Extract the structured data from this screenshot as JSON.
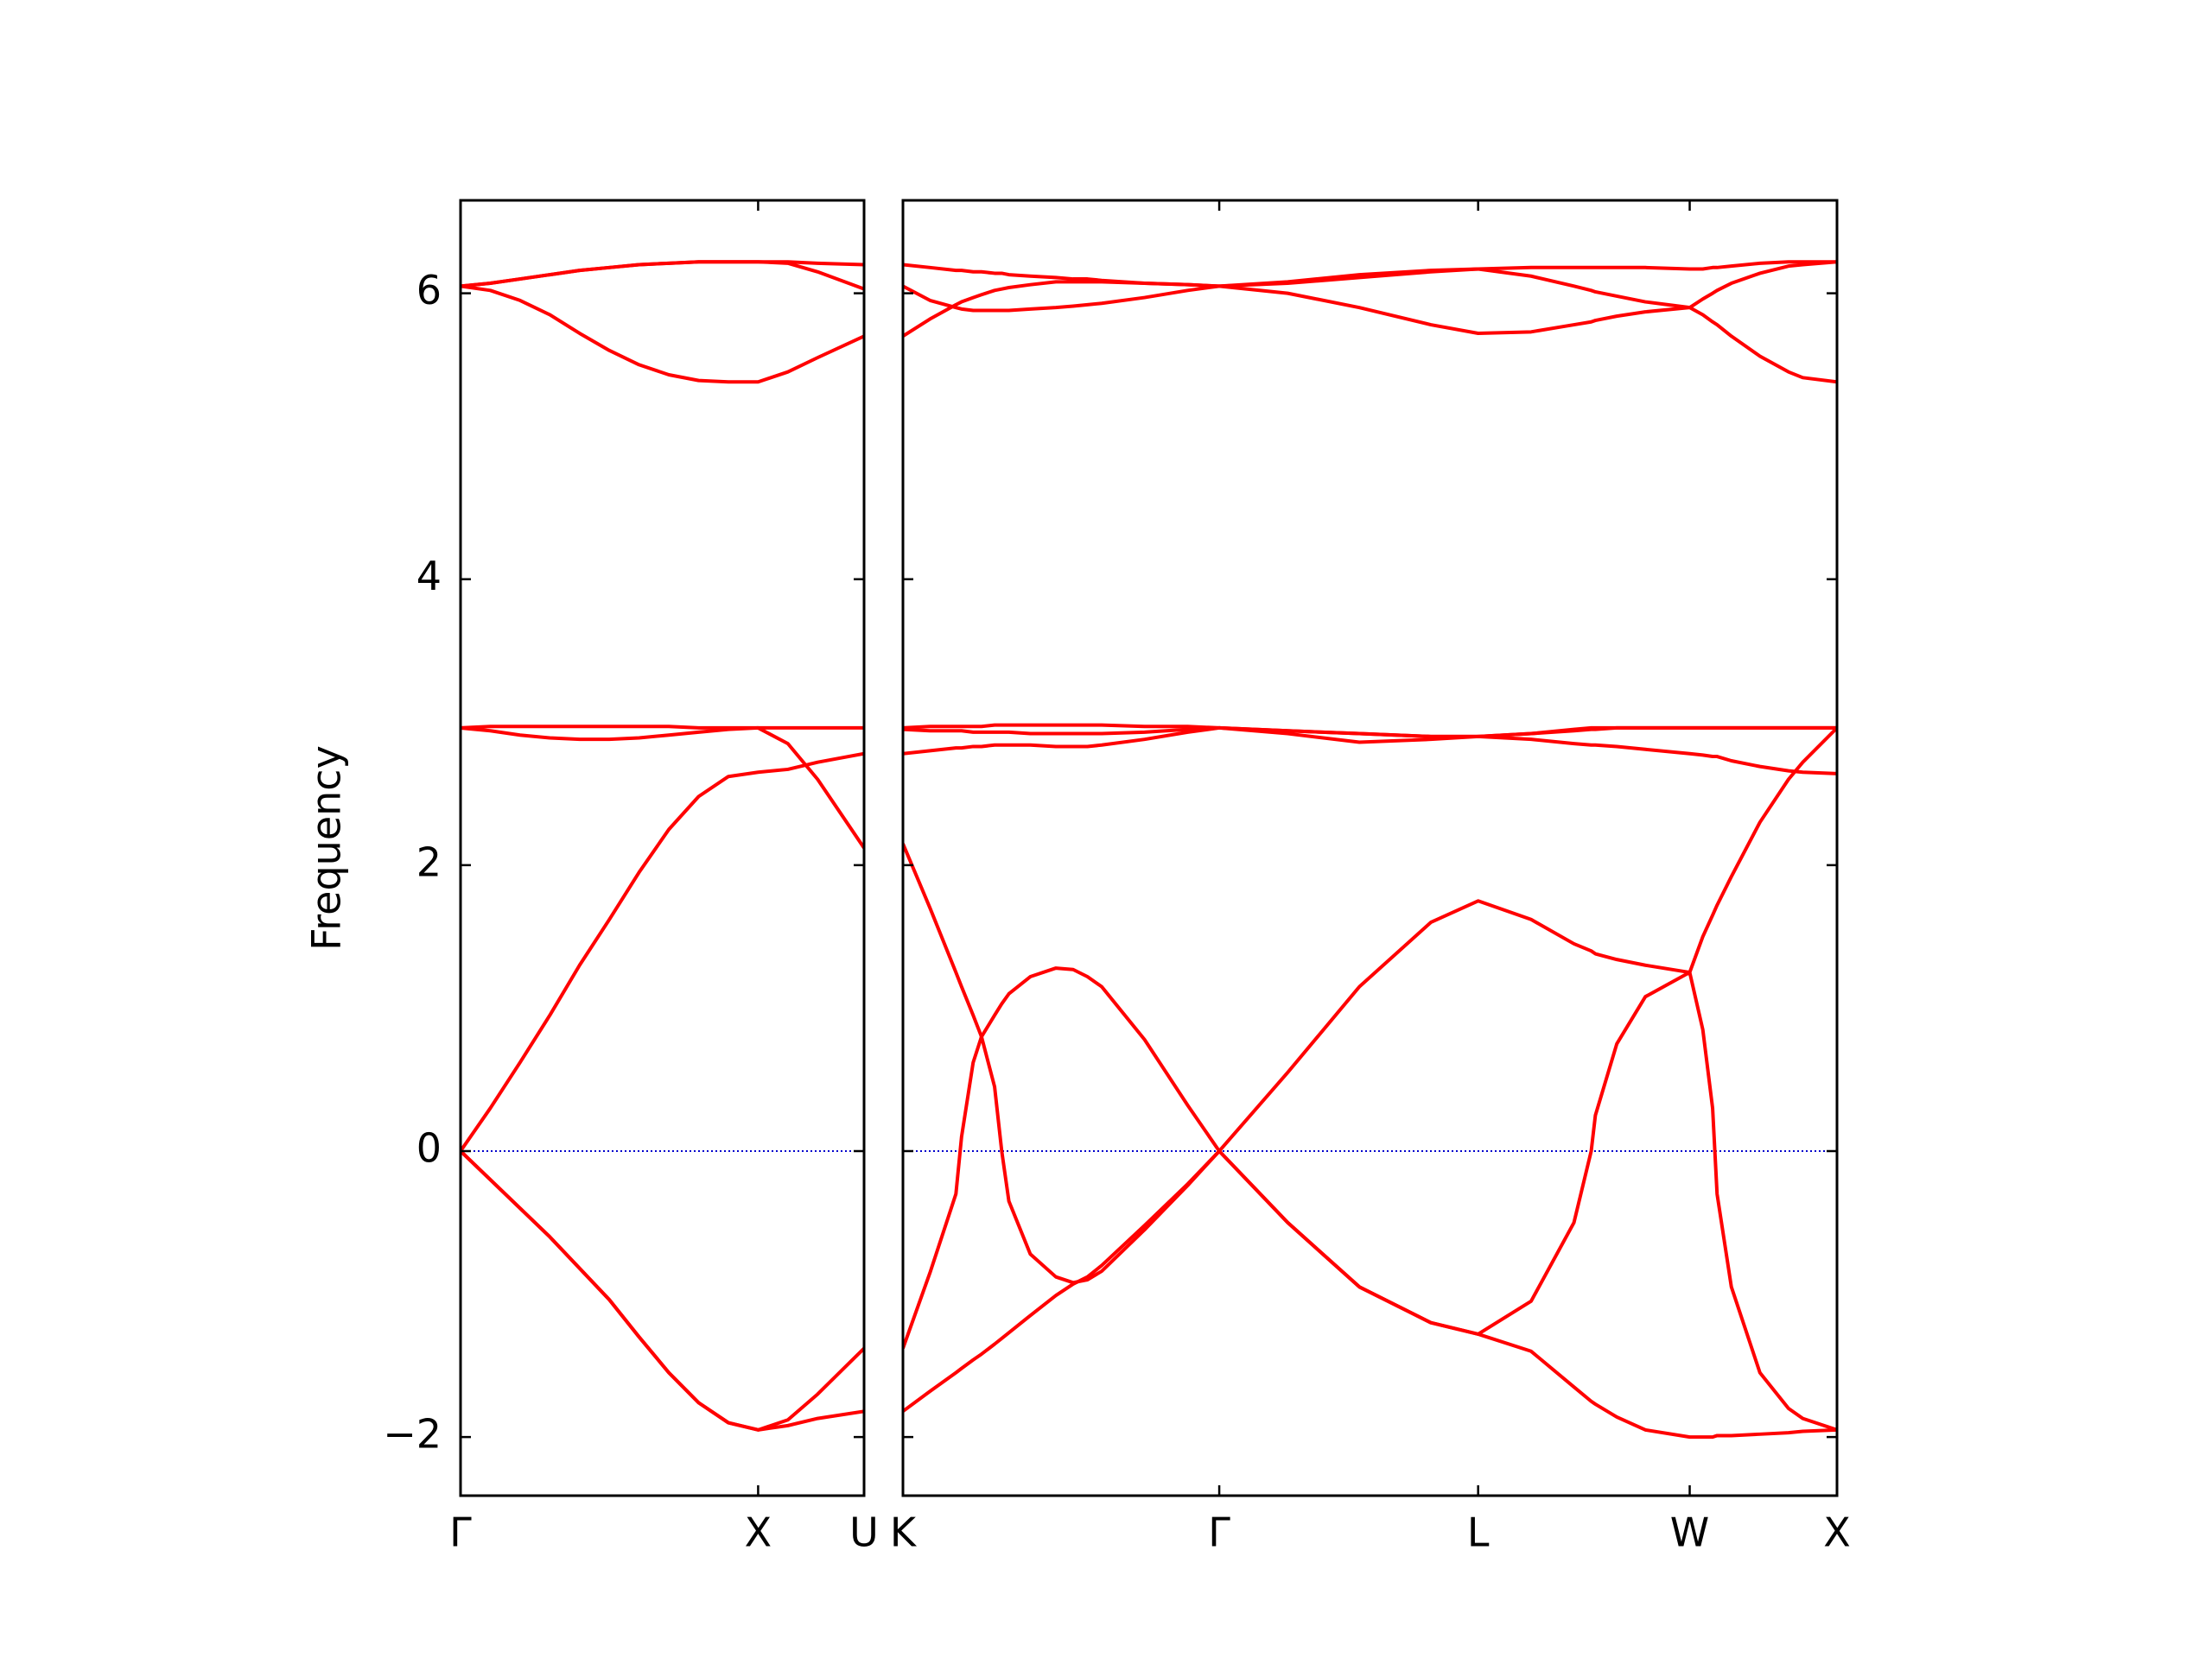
{
  "chart_data": [
    {
      "type": "line",
      "y_label": "Frequency",
      "color": "#ff0000",
      "hline": 0,
      "hline_color": "#0000cc",
      "ytick_labels": true,
      "xlim": [
        0,
        1.356
      ],
      "xticks": [
        {
          "value": 0,
          "label": "Γ"
        },
        {
          "value": 1,
          "label": "X"
        },
        {
          "value": 1.356,
          "label": "U"
        }
      ],
      "ylim": [
        -2.41,
        6.65
      ],
      "yticks": [
        {
          "value": -2,
          "label": "−2"
        },
        0,
        2,
        4,
        6
      ],
      "x": [
        0,
        0.1,
        0.2,
        0.3,
        0.4,
        0.5,
        0.6,
        0.7,
        0.8,
        0.9,
        1,
        1.1,
        1.2,
        1.356
      ],
      "series": [
        {
          "values": [
            0,
            -0.2,
            -0.4,
            -0.6,
            -0.82,
            -1.04,
            -1.3,
            -1.55,
            -1.76,
            -1.9,
            -1.95,
            -1.92,
            -1.87,
            -1.82
          ]
        },
        {
          "values": [
            0,
            -0.2,
            -0.4,
            -0.6,
            -0.82,
            -1.04,
            -1.3,
            -1.55,
            -1.76,
            -1.9,
            -1.95,
            -1.88,
            -1.7,
            -1.38
          ]
        },
        {
          "values": [
            0,
            0.3,
            0.62,
            0.95,
            1.3,
            1.62,
            1.95,
            2.25,
            2.48,
            2.62,
            2.65,
            2.67,
            2.72,
            2.78
          ]
        },
        {
          "values": [
            2.96,
            2.94,
            2.91,
            2.89,
            2.88,
            2.88,
            2.89,
            2.91,
            2.93,
            2.95,
            2.96,
            2.85,
            2.6,
            2.12
          ]
        },
        {
          "values": [
            2.96,
            2.97,
            2.97,
            2.97,
            2.97,
            2.97,
            2.97,
            2.97,
            2.96,
            2.96,
            2.96,
            2.96,
            2.96,
            2.96
          ]
        },
        {
          "values": [
            6.05,
            6.02,
            5.95,
            5.85,
            5.72,
            5.6,
            5.5,
            5.43,
            5.39,
            5.38,
            5.38,
            5.45,
            5.55,
            5.7
          ]
        },
        {
          "values": [
            6.05,
            6.07,
            6.1,
            6.13,
            6.16,
            6.18,
            6.2,
            6.21,
            6.22,
            6.22,
            6.22,
            6.22,
            6.21,
            6.2
          ]
        },
        {
          "values": [
            6.05,
            6.07,
            6.1,
            6.13,
            6.16,
            6.18,
            6.2,
            6.21,
            6.22,
            6.22,
            6.22,
            6.21,
            6.15,
            6.03
          ]
        }
      ]
    },
    {
      "type": "line",
      "color": "#ff0000",
      "hline": 0,
      "hline_color": "#0000cc",
      "ytick_labels": false,
      "xlim": [
        0,
        3.139
      ],
      "xticks": [
        {
          "value": 0,
          "label": "K"
        },
        {
          "value": 1.063,
          "label": "Γ"
        },
        {
          "value": 1.933,
          "label": "L"
        },
        {
          "value": 2.644,
          "label": "W"
        },
        {
          "value": 3.139,
          "label": "X"
        }
      ],
      "ylim": [
        -2.41,
        6.65
      ],
      "yticks": [
        -2,
        0,
        2,
        4,
        6
      ],
      "x": [
        0,
        0.091,
        0.178,
        0.197,
        0.236,
        0.264,
        0.308,
        0.332,
        0.356,
        0.428,
        0.514,
        0.572,
        0.62,
        0.668,
        0.812,
        0.957,
        1.063,
        1.293,
        1.534,
        1.774,
        1.933,
        2.111,
        2.255,
        2.313,
        2.327,
        2.399,
        2.495,
        2.644,
        2.688,
        2.721,
        2.736,
        2.784,
        2.88,
        2.976,
        3.024,
        3.139
      ],
      "series": [
        {
          "values": [
            2.15,
            1.7,
            1.25,
            1.15,
            0.95,
            0.8,
            0.95,
            1.03,
            1.1,
            1.22,
            1.28,
            1.27,
            1.22,
            1.15,
            0.78,
            0.32,
            0,
            0.55,
            1.15,
            1.6,
            1.75,
            1.62,
            1.45,
            1.4,
            1.38,
            1.34,
            1.3,
            1.25,
            1.5,
            1.65,
            1.72,
            1.92,
            2.3,
            2.6,
            2.72,
            2.96
          ]
        },
        {
          "values": [
            -1.38,
            -0.85,
            -0.3,
            0.1,
            0.62,
            0.8,
            0.45,
            0,
            -0.35,
            -0.72,
            -0.88,
            -0.92,
            -0.9,
            -0.84,
            -0.55,
            -0.24,
            0,
            -0.5,
            -0.95,
            -1.2,
            -1.28,
            -1.05,
            -0.5,
            0,
            0.25,
            0.75,
            1.08,
            1.25,
            0.85,
            0.3,
            -0.3,
            -0.95,
            -1.55,
            -1.8,
            -1.87,
            -1.95
          ]
        },
        {
          "values": [
            -1.82,
            -1.68,
            -1.55,
            -1.52,
            -1.46,
            -1.42,
            -1.35,
            -1.31,
            -1.27,
            -1.15,
            -1.01,
            -0.93,
            -0.88,
            -0.8,
            -0.52,
            -0.23,
            0,
            -0.5,
            -0.95,
            -1.2,
            -1.28,
            -1.4,
            -1.65,
            -1.75,
            -1.77,
            -1.86,
            -1.95,
            -2,
            -2,
            -2,
            -1.99,
            -1.99,
            -1.98,
            -1.97,
            -1.96,
            -1.95
          ]
        },
        {
          "values": [
            2.96,
            2.97,
            2.97,
            2.97,
            2.97,
            2.97,
            2.98,
            2.98,
            2.98,
            2.98,
            2.98,
            2.98,
            2.98,
            2.98,
            2.97,
            2.97,
            2.96,
            2.94,
            2.92,
            2.9,
            2.9,
            2.92,
            2.94,
            2.95,
            2.95,
            2.96,
            2.96,
            2.96,
            2.96,
            2.96,
            2.96,
            2.96,
            2.96,
            2.96,
            2.96,
            2.96
          ]
        },
        {
          "values": [
            2.95,
            2.94,
            2.94,
            2.94,
            2.93,
            2.93,
            2.93,
            2.93,
            2.93,
            2.92,
            2.92,
            2.92,
            2.92,
            2.92,
            2.93,
            2.95,
            2.96,
            2.92,
            2.86,
            2.88,
            2.9,
            2.92,
            2.95,
            2.96,
            2.96,
            2.96,
            2.96,
            2.96,
            2.96,
            2.96,
            2.96,
            2.96,
            2.96,
            2.96,
            2.96,
            2.96
          ]
        },
        {
          "values": [
            2.78,
            2.8,
            2.82,
            2.82,
            2.83,
            2.83,
            2.84,
            2.84,
            2.84,
            2.84,
            2.83,
            2.83,
            2.83,
            2.84,
            2.88,
            2.93,
            2.96,
            2.94,
            2.92,
            2.9,
            2.9,
            2.88,
            2.85,
            2.84,
            2.84,
            2.83,
            2.81,
            2.78,
            2.77,
            2.76,
            2.76,
            2.73,
            2.69,
            2.66,
            2.65,
            2.64
          ]
        },
        {
          "values": [
            6.2,
            6.18,
            6.16,
            6.16,
            6.15,
            6.15,
            6.14,
            6.14,
            6.13,
            6.12,
            6.11,
            6.1,
            6.1,
            6.09,
            6.07,
            6.06,
            6.05,
            6.07,
            6.11,
            6.15,
            6.17,
            6.18,
            6.18,
            6.18,
            6.18,
            6.18,
            6.18,
            6.17,
            6.17,
            6.18,
            6.18,
            6.19,
            6.21,
            6.22,
            6.22,
            6.22
          ]
        },
        {
          "values": [
            6.05,
            5.95,
            5.9,
            5.89,
            5.88,
            5.88,
            5.88,
            5.88,
            5.88,
            5.89,
            5.9,
            5.91,
            5.92,
            5.93,
            5.97,
            6.02,
            6.05,
            6,
            5.9,
            5.78,
            5.72,
            5.73,
            5.78,
            5.8,
            5.81,
            5.84,
            5.87,
            5.9,
            5.85,
            5.8,
            5.78,
            5.7,
            5.56,
            5.45,
            5.41,
            5.38
          ]
        },
        {
          "values": [
            5.7,
            5.82,
            5.92,
            5.94,
            5.97,
            5.99,
            6.02,
            6.03,
            6.04,
            6.06,
            6.08,
            6.08,
            6.08,
            6.08,
            6.07,
            6.06,
            6.05,
            6.08,
            6.13,
            6.16,
            6.17,
            6.12,
            6.05,
            6.02,
            6.01,
            5.98,
            5.94,
            5.9,
            5.96,
            6,
            6.02,
            6.07,
            6.14,
            6.19,
            6.2,
            6.22
          ]
        }
      ]
    }
  ]
}
